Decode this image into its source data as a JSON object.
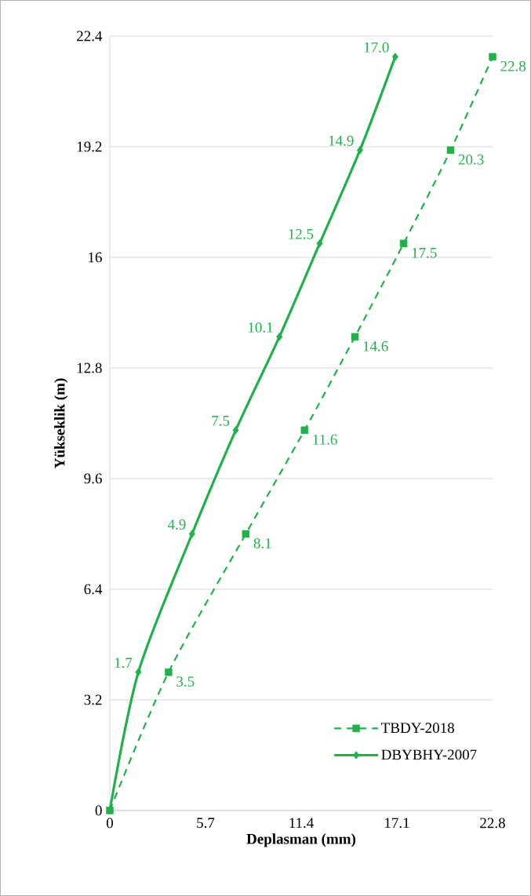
{
  "chart_data": {
    "type": "line",
    "orientation": "horizontal",
    "xlabel": "Deplasman (mm)",
    "ylabel": "Yükseklik (m)",
    "xlim": [
      0,
      22.8
    ],
    "ylim": [
      0,
      22.4
    ],
    "xticks": [
      0,
      5.7,
      11.4,
      17.1,
      22.8
    ],
    "yticks": [
      0,
      3.2,
      6.4,
      9.6,
      12.8,
      16,
      19.2,
      22.4
    ],
    "grid": "y",
    "legend": "bottom right",
    "series": [
      {
        "name": "TBDY-2018",
        "color": "#22b04b",
        "line_style": "dashed",
        "marker": "square",
        "x": [
          0,
          4,
          8,
          11,
          13.7,
          16.4,
          19.1,
          21.8
        ],
        "values": [
          0,
          3.5,
          8.1,
          11.6,
          14.6,
          17.5,
          20.3,
          22.8
        ],
        "value_labels": [
          null,
          "3.5",
          "8.1",
          "11.6",
          "14.6",
          "17.5",
          "20.3",
          "22.8"
        ]
      },
      {
        "name": "DBYBHY-2007",
        "color": "#22b04b",
        "line_style": "solid",
        "marker": "diamond",
        "x": [
          0,
          4,
          8,
          11,
          13.7,
          16.4,
          19.1,
          21.8
        ],
        "values": [
          0,
          1.7,
          4.9,
          7.5,
          10.1,
          12.5,
          14.9,
          17.0
        ],
        "value_labels": [
          null,
          "1.7",
          "4.9",
          "7.5",
          "10.1",
          "12.5",
          "14.9",
          "17.0"
        ]
      }
    ]
  }
}
